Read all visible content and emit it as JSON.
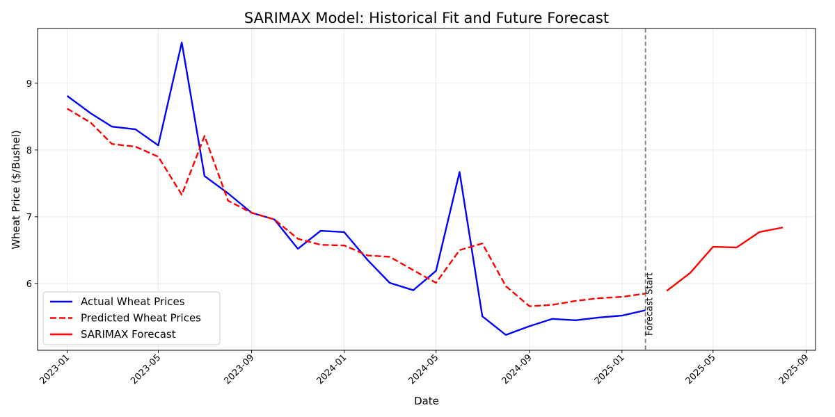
{
  "chart_data": {
    "type": "line",
    "title": "SARIMAX Model: Historical Fit and Future Forecast",
    "xlabel": "Date",
    "ylabel": "Wheat Price ($/Bushel)",
    "xlim": [
      "2022-11-23",
      "2025-09-13"
    ],
    "ylim": [
      5.0,
      9.82
    ],
    "grid": true,
    "legend_position": "lower-left",
    "x_ticks": [
      "2023-01",
      "2023-05",
      "2023-09",
      "2024-01",
      "2024-05",
      "2024-09",
      "2025-01",
      "2025-05",
      "2025-09"
    ],
    "y_ticks": [
      6,
      7,
      8,
      9
    ],
    "series": [
      {
        "name": "Actual Wheat Prices",
        "color": "#0000ff",
        "style": "solid",
        "x": [
          "2023-01-01",
          "2023-02-01",
          "2023-03-01",
          "2023-04-01",
          "2023-05-01",
          "2023-06-01",
          "2023-07-01",
          "2023-08-01",
          "2023-09-01",
          "2023-10-01",
          "2023-11-01",
          "2023-12-01",
          "2024-01-01",
          "2024-02-01",
          "2024-03-01",
          "2024-04-01",
          "2024-05-01",
          "2024-06-01",
          "2024-07-01",
          "2024-08-01",
          "2024-09-01",
          "2024-10-01",
          "2024-11-01",
          "2024-12-01",
          "2025-01-01",
          "2025-02-01"
        ],
        "values": [
          8.81,
          8.55,
          8.35,
          8.31,
          8.07,
          9.61,
          7.61,
          7.35,
          7.06,
          6.96,
          6.52,
          6.79,
          6.77,
          6.35,
          6.01,
          5.9,
          6.19,
          7.67,
          5.51,
          5.23,
          5.36,
          5.47,
          5.45,
          5.49,
          5.52,
          5.6
        ]
      },
      {
        "name": "Predicted Wheat Prices",
        "color": "#ff0000",
        "style": "dashed",
        "x": [
          "2023-01-01",
          "2023-02-01",
          "2023-03-01",
          "2023-04-01",
          "2023-05-01",
          "2023-06-01",
          "2023-07-01",
          "2023-08-01",
          "2023-09-01",
          "2023-10-01",
          "2023-11-01",
          "2023-12-01",
          "2024-01-01",
          "2024-02-01",
          "2024-03-01",
          "2024-04-01",
          "2024-05-01",
          "2024-06-01",
          "2024-07-01",
          "2024-08-01",
          "2024-09-01",
          "2024-10-01",
          "2024-11-01",
          "2024-12-01",
          "2025-01-01",
          "2025-02-01"
        ],
        "values": [
          8.62,
          8.41,
          8.09,
          8.05,
          7.9,
          7.33,
          8.21,
          7.24,
          7.06,
          6.96,
          6.67,
          6.58,
          6.57,
          6.42,
          6.4,
          6.2,
          6.01,
          6.5,
          6.6,
          5.96,
          5.66,
          5.68,
          5.74,
          5.78,
          5.8,
          5.85
        ]
      },
      {
        "name": "SARIMAX Forecast",
        "color": "#ff0000",
        "style": "solid",
        "x": [
          "2025-03-01",
          "2025-04-01",
          "2025-05-01",
          "2025-06-01",
          "2025-07-01",
          "2025-08-01"
        ],
        "values": [
          5.89,
          6.16,
          6.55,
          6.54,
          6.77,
          6.84
        ]
      }
    ],
    "annotations": [
      {
        "type": "vline",
        "x": "2025-02-01",
        "color": "#808080",
        "style": "dashed",
        "label": "Forecast Start"
      }
    ]
  }
}
